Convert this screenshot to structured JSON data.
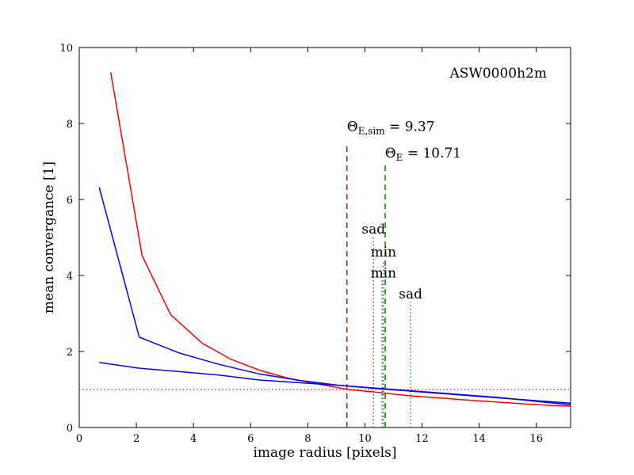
{
  "chart_data": {
    "type": "line",
    "title": "",
    "xlabel": "image radius [pixels]",
    "ylabel": "mean convergance [1]",
    "xlim": [
      0,
      17.2
    ],
    "ylim": [
      0,
      10
    ],
    "x_ticks": [
      0,
      2,
      4,
      6,
      8,
      10,
      12,
      14,
      16
    ],
    "y_ticks": [
      0,
      2,
      4,
      6,
      8,
      10
    ],
    "grid": false,
    "legend": "none",
    "label": "ASW0000h2m",
    "series": [
      {
        "color": "#ff0000",
        "x": [
          1.1,
          2.2,
          3.2,
          4.3,
          5.3,
          6.3,
          7.3,
          8.4,
          9.4,
          10.5,
          11.5,
          12.6,
          13.6,
          14.6,
          15.6,
          16.6,
          17.2
        ],
        "y": [
          9.35,
          4.52,
          2.97,
          2.22,
          1.8,
          1.51,
          1.3,
          1.14,
          1.0,
          0.92,
          0.84,
          0.78,
          0.72,
          0.67,
          0.62,
          0.58,
          0.56
        ]
      },
      {
        "color": "#0000ff",
        "x": [
          0.7,
          2.1,
          3.5,
          4.9,
          6.3,
          7.7,
          9.1,
          10.5,
          11.9,
          13.3,
          14.7,
          16.1,
          17.2
        ],
        "y": [
          6.32,
          2.38,
          1.96,
          1.66,
          1.41,
          1.24,
          1.11,
          1.02,
          0.94,
          0.86,
          0.78,
          0.7,
          0.64
        ]
      },
      {
        "color": "#0000ff",
        "x": [
          0.7,
          2.1,
          3.5,
          4.9,
          6.3,
          7.7,
          9.1,
          10.5,
          11.9,
          13.3,
          14.7,
          16.1,
          17.2
        ],
        "y": [
          1.71,
          1.56,
          1.47,
          1.38,
          1.25,
          1.18,
          1.11,
          1.03,
          0.95,
          0.87,
          0.79,
          0.68,
          0.6
        ]
      }
    ],
    "hlines": [
      {
        "y": 1.0,
        "color": "#bf00bf",
        "style": "dotted"
      }
    ],
    "vlines": [
      {
        "x": 9.37,
        "ymin": 0,
        "ymax": 7.5,
        "color": "#ff0000",
        "style": "dashed",
        "label": "Θ",
        "label_sub": "E,sim",
        "label_rest": " = 9.37",
        "label_x": 9.37,
        "label_y": 7.8
      },
      {
        "x": 10.71,
        "ymin": 0,
        "ymax": 7.0,
        "color": "#008000",
        "style": "dashed",
        "label": "Θ",
        "label_sub": "E",
        "label_rest": " = 10.71",
        "label_x": 10.7,
        "label_y": 7.1
      },
      {
        "x": 10.3,
        "ymin": 0,
        "ymax": 5.0,
        "color": "#008000",
        "style": "dotted",
        "label": "sad",
        "label_x": 10.3,
        "label_y": 5.1
      },
      {
        "x": 10.65,
        "ymin": 0,
        "ymax": 4.4,
        "color": "#008000",
        "style": "dotted",
        "label": "min",
        "label_x": 10.65,
        "label_y": 4.5
      },
      {
        "x": 10.6,
        "ymin": 0,
        "ymax": 3.9,
        "color": "#008000",
        "style": "dotted",
        "label": "min",
        "label_x": 10.65,
        "label_y": 3.95
      },
      {
        "x": 11.6,
        "ymin": 0,
        "ymax": 3.3,
        "color": "#008000",
        "style": "dotted",
        "label": "sad",
        "label_x": 11.6,
        "label_y": 3.4
      }
    ]
  }
}
